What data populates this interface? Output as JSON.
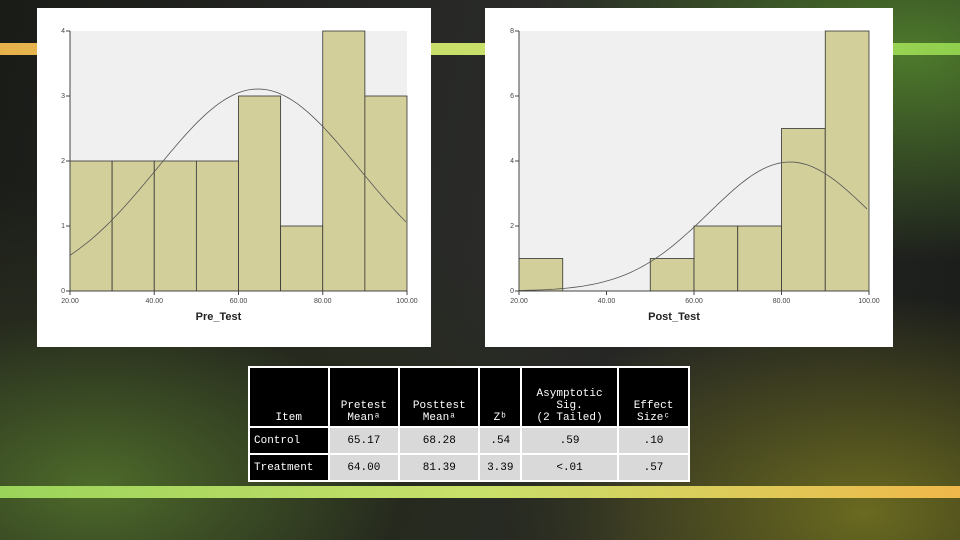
{
  "chart_data": [
    {
      "type": "histogram",
      "x_label": "Pre_Test",
      "bins": [
        20,
        30,
        40,
        50,
        60,
        70,
        80,
        90,
        100
      ],
      "values": [
        2,
        2,
        2,
        2,
        3,
        1,
        4,
        3
      ],
      "color": "#d3cf9b",
      "xlim": [
        20,
        100
      ],
      "xticks": [
        {
          "value": 20,
          "label": "20.00"
        },
        {
          "value": 40,
          "label": "40.00"
        },
        {
          "value": 60,
          "label": "60.00"
        },
        {
          "value": 80,
          "label": "80.00"
        },
        {
          "value": 100,
          "label": "100.00"
        }
      ],
      "ylim": [
        0,
        4
      ],
      "yticks": [
        0,
        1,
        2,
        3,
        4
      ]
    },
    {
      "type": "histogram",
      "x_label": "Post_Test",
      "bins": [
        20,
        30,
        40,
        50,
        60,
        70,
        80,
        90,
        100
      ],
      "values": [
        1,
        0,
        0,
        1,
        2,
        2,
        5,
        8
      ],
      "color": "#d3cf9b",
      "xlim": [
        20,
        100
      ],
      "xticks": [
        {
          "value": 20,
          "label": "20.00"
        },
        {
          "value": 40,
          "label": "40.00"
        },
        {
          "value": 60,
          "label": "60.00"
        },
        {
          "value": 80,
          "label": "80.00"
        },
        {
          "value": 100,
          "label": "100.00"
        }
      ],
      "ylim": [
        0,
        8
      ],
      "yticks": [
        0,
        2,
        4,
        6,
        8
      ]
    }
  ],
  "table": {
    "header": [
      [
        "Item"
      ],
      [
        "Pretest",
        "Meanᵃ"
      ],
      [
        "Posttest",
        "Meanᵃ"
      ],
      [
        "Zᵇ"
      ],
      [
        "Asymptotic",
        "Sig.",
        "(2 Tailed)"
      ],
      [
        "Effect",
        "Sizeᶜ"
      ]
    ],
    "rows": [
      [
        "Control",
        "65.17",
        "68.28",
        ".54",
        ".59",
        ".10"
      ],
      [
        "Treatment",
        "64.00",
        "81.39",
        "3.39",
        "<.01",
        ".57"
      ]
    ]
  }
}
